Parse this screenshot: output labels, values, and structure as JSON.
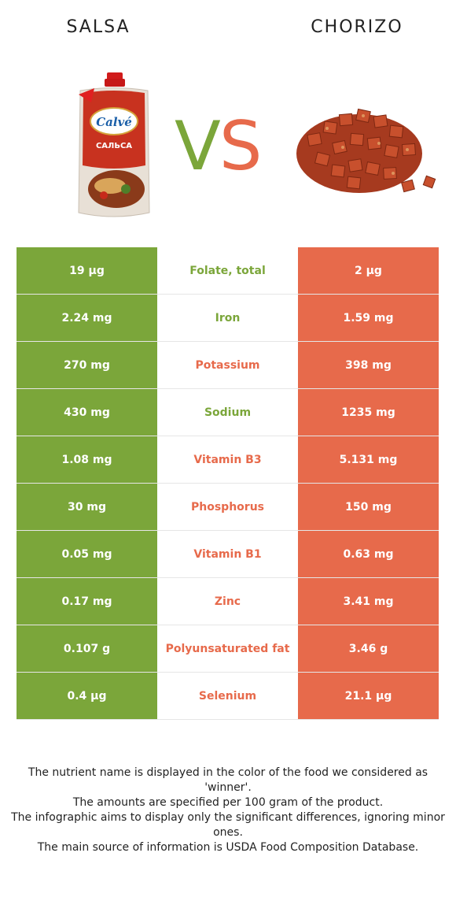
{
  "header": {
    "left_food": "SALSA",
    "right_food": "CHORIZO",
    "vs_v": "V",
    "vs_s": "S"
  },
  "colors": {
    "winner_left": "#7ba63a",
    "winner_right": "#e76a4b"
  },
  "table": {
    "rows": [
      {
        "left": "19 µg",
        "nutrient": "Folate, total",
        "right": "2 µg",
        "winner": "left"
      },
      {
        "left": "2.24 mg",
        "nutrient": "Iron",
        "right": "1.59 mg",
        "winner": "left"
      },
      {
        "left": "270 mg",
        "nutrient": "Potassium",
        "right": "398 mg",
        "winner": "right"
      },
      {
        "left": "430 mg",
        "nutrient": "Sodium",
        "right": "1235 mg",
        "winner": "left"
      },
      {
        "left": "1.08 mg",
        "nutrient": "Vitamin B3",
        "right": "5.131 mg",
        "winner": "right"
      },
      {
        "left": "30 mg",
        "nutrient": "Phosphorus",
        "right": "150 mg",
        "winner": "right"
      },
      {
        "left": "0.05 mg",
        "nutrient": "Vitamin B1",
        "right": "0.63 mg",
        "winner": "right"
      },
      {
        "left": "0.17 mg",
        "nutrient": "Zinc",
        "right": "3.41 mg",
        "winner": "right"
      },
      {
        "left": "0.107 g",
        "nutrient": "Polyunsaturated fat",
        "right": "3.46 g",
        "winner": "right"
      },
      {
        "left": "0.4 µg",
        "nutrient": "Selenium",
        "right": "21.1 µg",
        "winner": "right"
      }
    ]
  },
  "footer": {
    "line1": "The nutrient name is displayed in the color of the food we considered as 'winner'.",
    "line2": "The amounts are specified per 100 gram of the product.",
    "line3": "The infographic aims to display only the significant differences, ignoring minor ones.",
    "line4": "The main source of information is USDA Food Composition Database."
  },
  "images": {
    "left_icon": "salsa-pouch-icon",
    "right_icon": "chorizo-cubes-icon",
    "left_brand_text": "Calvé",
    "left_product_text": "САЛЬСА"
  }
}
